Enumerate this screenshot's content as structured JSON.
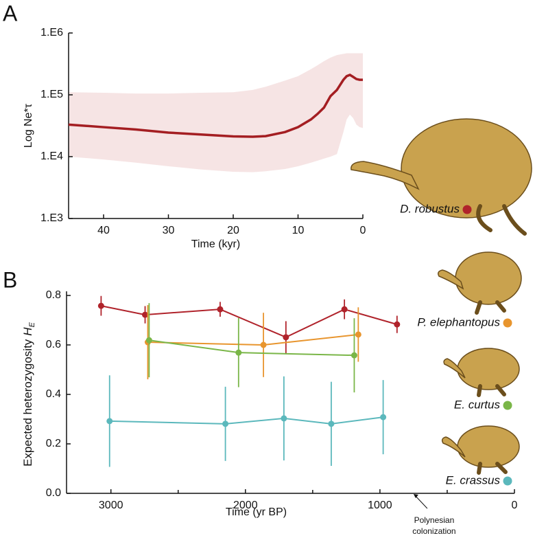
{
  "chart_data": [
    {
      "type": "line",
      "panel": "A",
      "xlabel": "Time (kyr)",
      "ylabel": "Log Ne*τ",
      "xlim": [
        45.4,
        0
      ],
      "xticks": [
        40,
        30,
        20,
        10,
        0
      ],
      "ylim": [
        1000,
        1000000
      ],
      "yscale": "log",
      "yticks": [
        {
          "value": 1000,
          "label": "1.E3"
        },
        {
          "value": 10000,
          "label": "1.E4"
        },
        {
          "value": 100000,
          "label": "1.E5"
        },
        {
          "value": 1000000,
          "label": "1.E6"
        }
      ],
      "x": [
        45.4,
        40,
        35,
        30,
        25,
        20,
        17,
        15,
        12,
        10,
        8,
        7,
        6,
        5,
        4,
        3,
        2.5,
        2,
        1.5,
        1,
        0.5,
        0
      ],
      "series": [
        {
          "color": "#a41e22",
          "values": [
            33000,
            30000,
            27500,
            24500,
            22800,
            21300,
            21000,
            21500,
            25000,
            30000,
            40000,
            49000,
            62000,
            95000,
            120000,
            175000,
            200000,
            210000,
            195000,
            180000,
            175000,
            175000
          ]
        }
      ],
      "band": {
        "color": "#f6e4e4",
        "upper": [
          110000,
          108000,
          105000,
          105000,
          108000,
          110000,
          120000,
          135000,
          170000,
          200000,
          260000,
          300000,
          350000,
          400000,
          440000,
          460000,
          470000,
          470000,
          470000,
          470000,
          470000,
          470000
        ],
        "lower": [
          10000,
          9000,
          8000,
          7000,
          6200,
          5700,
          5600,
          5800,
          6300,
          7000,
          8000,
          8600,
          9300,
          10000,
          11000,
          25000,
          40000,
          48000,
          42000,
          33000,
          30000,
          29000
        ]
      }
    },
    {
      "type": "errorbar",
      "panel": "B",
      "xlabel": "Time (yr BP)",
      "ylabel": {
        "text": "Expected heterozygosity",
        "symbol": "H",
        "subscript": "E"
      },
      "xlim": [
        3330,
        0
      ],
      "xticks": [
        3000,
        2000,
        1000,
        0
      ],
      "minor_xticks": [
        2500,
        1500,
        500
      ],
      "ylim": [
        0,
        0.8
      ],
      "yticks": [
        {
          "value": 0,
          "label": "0.0"
        },
        0.2,
        0.4,
        0.6,
        0.8
      ],
      "series": [
        {
          "name": "D. robustus",
          "color": "#b0232b",
          "x": [
            3073,
            2746,
            2188,
            1699,
            1264,
            873
          ],
          "values": [
            0.758,
            0.722,
            0.744,
            0.631,
            0.744,
            0.683
          ],
          "errors": [
            0.04,
            0.035,
            0.03,
            0.065,
            0.04,
            0.035
          ]
        },
        {
          "name": "P. elephantopus",
          "color": "#e8952e",
          "x": [
            2726,
            1866,
            1161
          ],
          "values": [
            0.611,
            0.6,
            0.642
          ],
          "errors": [
            0.15,
            0.13,
            0.11
          ]
        },
        {
          "name": "E. curtus",
          "color": "#7ab648",
          "x": [
            2716,
            2051,
            1191
          ],
          "values": [
            0.619,
            0.569,
            0.558
          ],
          "errors": [
            0.15,
            0.14,
            0.15
          ]
        },
        {
          "name": "E. crassus",
          "color": "#5bb8bc",
          "x": [
            3010,
            2149,
            1714,
            1362,
            976
          ],
          "values": [
            0.292,
            0.281,
            0.303,
            0.281,
            0.308
          ],
          "errors": [
            0.185,
            0.15,
            0.17,
            0.17,
            0.15
          ]
        }
      ],
      "annotation": {
        "text": [
          "Polynesian",
          "colonization"
        ],
        "x": 750
      }
    }
  ]
}
